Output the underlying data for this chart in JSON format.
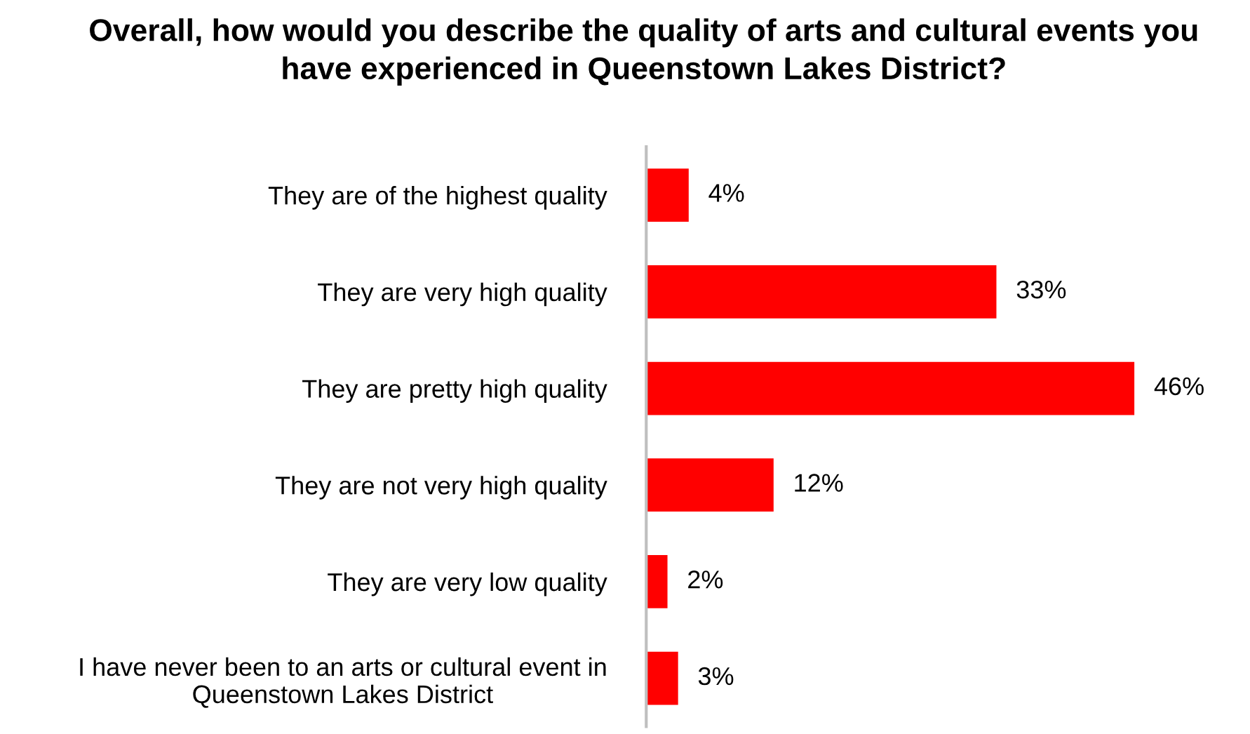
{
  "chart_data": {
    "type": "bar",
    "orientation": "horizontal",
    "title": "Overall, how would you describe the quality of arts and cultural events you\nhave experienced in Queenstown Lakes District?",
    "categories": [
      "They are of the highest quality",
      "They are very high quality",
      "They are pretty high quality",
      "They are not very high quality",
      "They are very low quality",
      "I have never been to an arts or cultural event in\nQueenstown Lakes District"
    ],
    "values": [
      4,
      33,
      46,
      12,
      2,
      3
    ],
    "value_labels": [
      "4%",
      "33%",
      "46%",
      "12%",
      "2%",
      "3%"
    ],
    "color": "#ff0000",
    "tick_labels": "y",
    "grid": false,
    "legend": false
  }
}
